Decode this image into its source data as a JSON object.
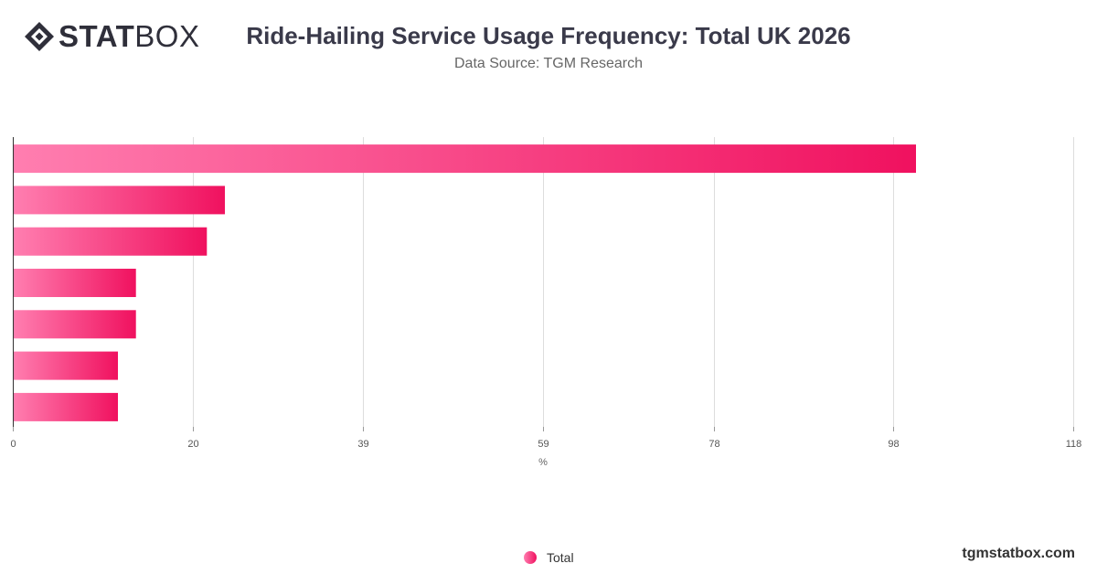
{
  "brand": {
    "logo_bold": "STAT",
    "logo_light": "BOX",
    "watermark": "tgmstatbox.com"
  },
  "colors": {
    "bar_start": "#ff7eb0",
    "bar_end": "#f0115f",
    "grid": "#dddddd",
    "axis": "#333333"
  },
  "chart_data": {
    "type": "bar",
    "orientation": "horizontal",
    "title": "Ride-Hailing Service Usage Frequency: Total UK 2026",
    "subtitle": "Data Source: TGM Research",
    "xlabel": "%",
    "ylabel": "",
    "xlim": [
      0,
      118
    ],
    "ticks": [
      0,
      20,
      39,
      59,
      78,
      98,
      118
    ],
    "grid": true,
    "legend_position": "bottom",
    "categories": [
      "",
      "",
      "",
      "",
      "",
      "",
      ""
    ],
    "series": [
      {
        "name": "Total",
        "values": [
          100.5,
          23.6,
          21.6,
          13.7,
          13.7,
          11.7,
          11.7
        ]
      }
    ]
  }
}
